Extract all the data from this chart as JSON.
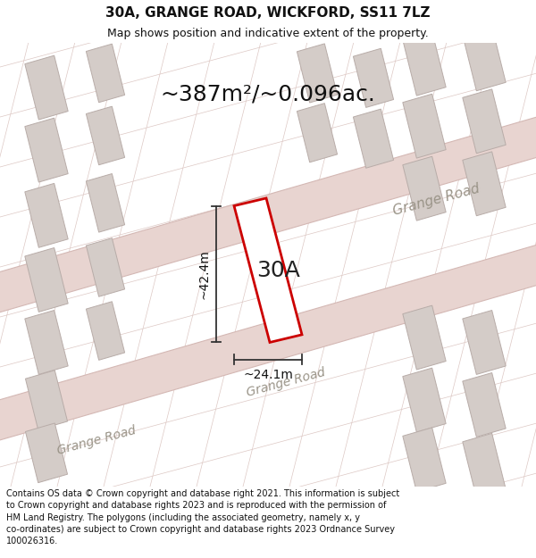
{
  "title": "30A, GRANGE ROAD, WICKFORD, SS11 7LZ",
  "subtitle": "Map shows position and indicative extent of the property.",
  "area_text": "~387m²/~0.096ac.",
  "label_30A": "30A",
  "dim_height": "~42.4m",
  "dim_width": "~24.1m",
  "road_label_ur": "Grange Road",
  "road_label_lc": "Grange Road",
  "road_label_ll": "Grange Road",
  "footer": "Contains OS data © Crown copyright and database right 2021. This information is subject\nto Crown copyright and database rights 2023 and is reproduced with the permission of\nHM Land Registry. The polygons (including the associated geometry, namely x, y\nco-ordinates) are subject to Crown copyright and database rights 2023 Ordnance Survey\n100026316.",
  "bg_color": "#f2eeec",
  "road_band_color": "#e8d4d0",
  "road_edge_color": "#d4b8b4",
  "bldg_fill": "#d4ccc8",
  "bldg_edge": "#b8aca8",
  "plot_fill": "#ffffff",
  "plot_edge": "#cc0000",
  "dim_color": "#333333",
  "road_text_color": "#9a9488",
  "title_fontsize": 11,
  "subtitle_fontsize": 9,
  "area_fontsize": 18,
  "label_fontsize": 18,
  "dim_fontsize": 10,
  "road_label_fontsize": 11,
  "footer_fontsize": 7
}
